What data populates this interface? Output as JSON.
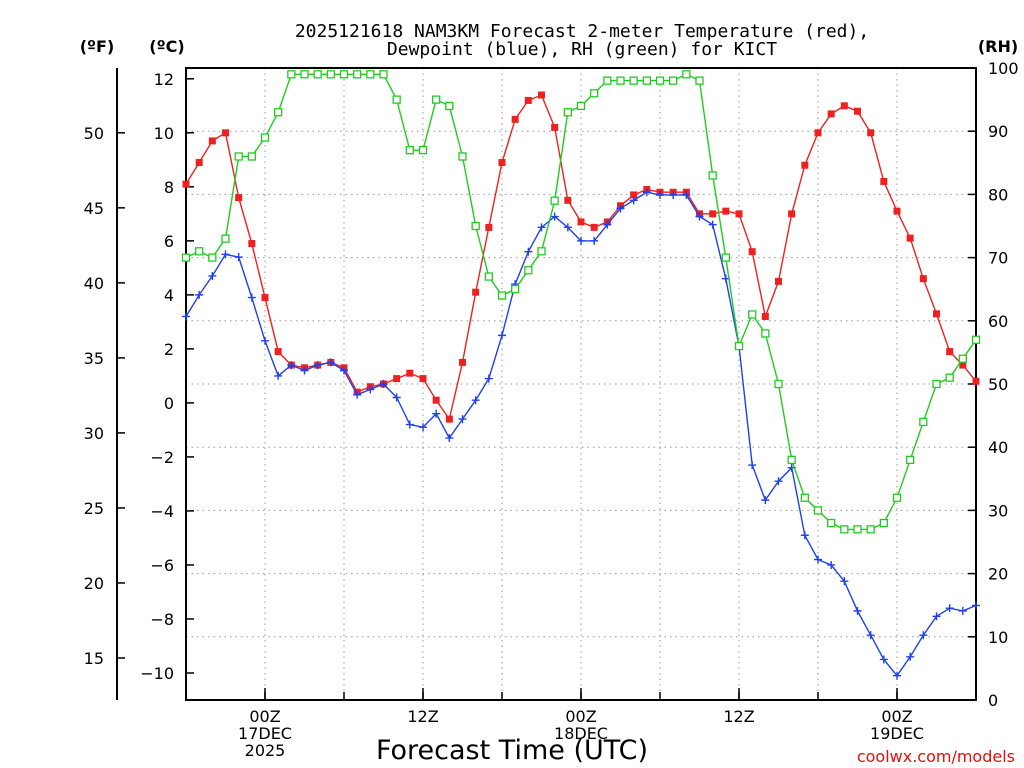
{
  "chart_data": {
    "type": "line",
    "title": "2025121618 NAM3KM Forecast 2-meter Temperature (red),",
    "subtitle": "Dewpoint (blue), RH (green) for KICT",
    "xlabel": "Forecast Time (UTC)",
    "watermark": "coolwx.com/models",
    "x_start_hour": -6,
    "x_end_hour": 54,
    "x_ticks": [
      {
        "hour": 0,
        "lines": [
          "00Z",
          "17DEC",
          "2025"
        ]
      },
      {
        "hour": 12,
        "lines": [
          "12Z"
        ]
      },
      {
        "hour": 24,
        "lines": [
          "00Z",
          "18DEC"
        ]
      },
      {
        "hour": 36,
        "lines": [
          "12Z"
        ]
      },
      {
        "hour": 48,
        "lines": [
          "00Z",
          "19DEC"
        ]
      }
    ],
    "axes": {
      "fahrenheit": {
        "label": "(ºF)",
        "ticks": [
          15,
          20,
          25,
          30,
          35,
          40,
          45,
          50
        ]
      },
      "celsius": {
        "label": "(ºC)",
        "ylim": [
          -11.0,
          12.4
        ],
        "ticks": [
          -10,
          -8,
          -6,
          -4,
          -2,
          0,
          2,
          4,
          6,
          8,
          10,
          12
        ]
      },
      "rh": {
        "label": "(RH)",
        "ylim": [
          0,
          100
        ],
        "ticks": [
          0,
          10,
          20,
          30,
          40,
          50,
          60,
          70,
          80,
          90,
          100
        ]
      }
    },
    "x_hours": [
      -6,
      -5,
      -4,
      -3,
      -2,
      -1,
      0,
      1,
      2,
      3,
      4,
      5,
      6,
      7,
      8,
      9,
      10,
      11,
      12,
      13,
      14,
      15,
      16,
      17,
      18,
      19,
      20,
      21,
      22,
      23,
      24,
      25,
      26,
      27,
      28,
      29,
      30,
      31,
      32,
      33,
      34,
      35,
      36,
      37,
      38,
      39,
      40,
      41,
      42,
      43,
      44,
      45,
      46,
      47,
      48,
      49,
      50,
      51,
      52,
      53,
      54
    ],
    "series": [
      {
        "name": "Temperature",
        "unit": "C",
        "axis": "celsius",
        "color": "#ee2020",
        "marker": "filled-square",
        "values": [
          8.1,
          8.9,
          9.7,
          10.0,
          7.6,
          5.9,
          3.9,
          1.9,
          1.4,
          1.3,
          1.4,
          1.5,
          1.3,
          0.4,
          0.6,
          0.7,
          0.9,
          1.1,
          0.9,
          0.1,
          -0.6,
          1.5,
          4.1,
          6.5,
          8.9,
          10.5,
          11.2,
          11.4,
          10.2,
          7.5,
          6.7,
          6.5,
          6.7,
          7.3,
          7.7,
          7.9,
          7.8,
          7.8,
          7.8,
          7.0,
          7.0,
          7.1,
          7.0,
          5.6,
          3.2,
          4.5,
          7.0,
          8.8,
          10.0,
          10.7,
          11.0,
          10.8,
          10.0,
          8.2,
          7.1,
          6.1,
          4.6,
          3.3,
          1.9,
          1.4,
          0.8
        ]
      },
      {
        "name": "Dewpoint",
        "unit": "C",
        "axis": "celsius",
        "color": "#2040ee",
        "marker": "plus",
        "values": [
          3.2,
          4.0,
          4.7,
          5.5,
          5.4,
          3.9,
          2.3,
          1.0,
          1.4,
          1.2,
          1.4,
          1.5,
          1.2,
          0.3,
          0.5,
          0.7,
          0.2,
          -0.8,
          -0.9,
          -0.4,
          -1.3,
          -0.6,
          0.1,
          0.9,
          2.5,
          4.4,
          5.6,
          6.5,
          6.9,
          6.5,
          6.0,
          6.0,
          6.6,
          7.2,
          7.5,
          7.8,
          7.7,
          7.7,
          7.7,
          6.9,
          6.6,
          4.6,
          2.1,
          -2.3,
          -3.6,
          -2.9,
          -2.4,
          -4.9,
          -5.8,
          -6.0,
          -6.6,
          -7.7,
          -8.6,
          -9.5,
          -10.1,
          -9.4,
          -8.6,
          -7.9,
          -7.6,
          -7.7,
          -7.5
        ]
      },
      {
        "name": "RH",
        "unit": "%",
        "axis": "rh",
        "color": "#20cc20",
        "marker": "open-square",
        "values": [
          70,
          71,
          70,
          73,
          86,
          86,
          89,
          93,
          99,
          99,
          99,
          99,
          99,
          99,
          99,
          99,
          95,
          87,
          87,
          95,
          94,
          86,
          75,
          67,
          64,
          65,
          68,
          71,
          79,
          93,
          94,
          96,
          98,
          98,
          98,
          98,
          98,
          98,
          99,
          98,
          83,
          70,
          56,
          61,
          58,
          50,
          38,
          32,
          30,
          28,
          27,
          27,
          27,
          28,
          32,
          38,
          44,
          50,
          51,
          54,
          57
        ]
      }
    ]
  }
}
